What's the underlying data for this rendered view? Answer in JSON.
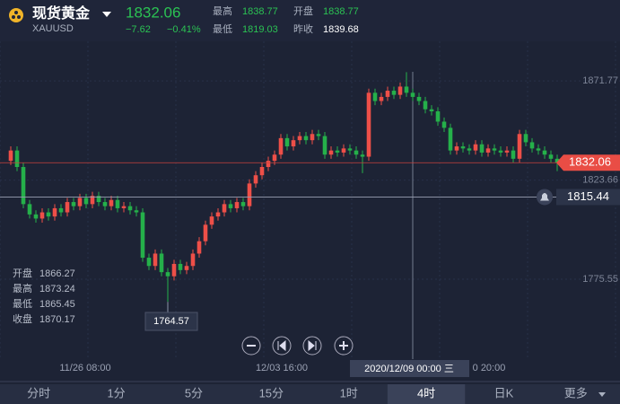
{
  "header": {
    "name": "现货黄金",
    "symbol": "XAUUSD",
    "price": "1832.06",
    "change": "−7.62",
    "change_pct": "−0.41%",
    "stats": [
      {
        "label": "最高",
        "value": "1838.77"
      },
      {
        "label": "开盘",
        "value": "1838.77"
      },
      {
        "label": "最低",
        "value": "1819.03"
      },
      {
        "label": "昨收",
        "value": "1839.68"
      }
    ]
  },
  "info": [
    {
      "label": "开盘",
      "value": "1866.27"
    },
    {
      "label": "最高",
      "value": "1873.24"
    },
    {
      "label": "最低",
      "value": "1865.45"
    },
    {
      "label": "收盘",
      "value": "1870.17"
    }
  ],
  "crosshair_label": "2020/12/09 00:00 三",
  "tabs": [
    "分时",
    "1分",
    "5分",
    "15分",
    "1时",
    "4时",
    "日K",
    "更多"
  ],
  "active_tab": 5,
  "chart_data": {
    "type": "candlestick",
    "up_color": "#ee4f48",
    "down_color": "#25b04a",
    "ylim": [
      1739,
      1891.4
    ],
    "yticks": [
      1775.55,
      1823.66,
      1871.77
    ],
    "xticks": [
      "11/26 08:00",
      "12/03 16:00",
      "0 20:00"
    ],
    "alert_price": 1815.44,
    "open": [
      1833,
      1838,
      1830,
      1812,
      1807,
      1805,
      1808,
      1806,
      1810,
      1808,
      1813,
      1811,
      1815,
      1812,
      1816,
      1813,
      1811,
      1814,
      1810,
      1811,
      1809,
      1808,
      1786,
      1782,
      1788,
      1779,
      1777,
      1783,
      1780,
      1782,
      1788,
      1794,
      1802,
      1806,
      1808,
      1812,
      1810,
      1813,
      1811,
      1822,
      1826,
      1830,
      1833,
      1836,
      1844,
      1840,
      1843,
      1845,
      1843,
      1846,
      1845,
      1836,
      1838,
      1837,
      1839,
      1838,
      1836,
      1835,
      1866,
      1862,
      1864,
      1867,
      1865,
      1869,
      1866,
      1864,
      1862,
      1858,
      1857,
      1852,
      1849,
      1838,
      1840,
      1839,
      1838,
      1841,
      1837,
      1839,
      1838,
      1837,
      1838,
      1834,
      1846,
      1842,
      1839,
      1838,
      1836,
      1834
    ],
    "high": [
      1840,
      1840,
      1832,
      1814,
      1809,
      1810,
      1810,
      1812,
      1812,
      1815,
      1815,
      1817,
      1817,
      1818,
      1818,
      1815,
      1816,
      1816,
      1813,
      1813,
      1811,
      1810,
      1788,
      1790,
      1790,
      1781,
      1785,
      1785,
      1784,
      1790,
      1796,
      1804,
      1808,
      1810,
      1814,
      1814,
      1815,
      1815,
      1824,
      1828,
      1832,
      1835,
      1838,
      1846,
      1846,
      1845,
      1847,
      1847,
      1848,
      1848,
      1847,
      1840,
      1840,
      1841,
      1841,
      1840,
      1838,
      1868,
      1868,
      1866,
      1869,
      1869,
      1871,
      1876,
      1868,
      1866,
      1864,
      1860,
      1859,
      1854,
      1851,
      1842,
      1842,
      1841,
      1843,
      1843,
      1841,
      1841,
      1840,
      1840,
      1840,
      1848,
      1848,
      1844,
      1841,
      1840,
      1838,
      1836
    ],
    "low": [
      1831,
      1828,
      1810,
      1805,
      1803,
      1803,
      1804,
      1804,
      1806,
      1806,
      1809,
      1809,
      1810,
      1810,
      1811,
      1809,
      1809,
      1808,
      1808,
      1807,
      1806,
      1784,
      1780,
      1780,
      1777,
      1764.57,
      1775,
      1778,
      1778,
      1780,
      1786,
      1792,
      1800,
      1804,
      1806,
      1808,
      1808,
      1809,
      1809,
      1820,
      1824,
      1828,
      1831,
      1834,
      1838,
      1838,
      1841,
      1841,
      1841,
      1843,
      1834,
      1834,
      1835,
      1835,
      1836,
      1834,
      1827,
      1833,
      1860,
      1860,
      1862,
      1863,
      1863,
      1864,
      1862,
      1860,
      1856,
      1855,
      1850,
      1847,
      1836,
      1836,
      1837,
      1836,
      1836,
      1835,
      1835,
      1836,
      1835,
      1835,
      1832,
      1832,
      1840,
      1837,
      1836,
      1834,
      1832,
      1828
    ],
    "close": [
      1838,
      1830,
      1812,
      1807,
      1805,
      1808,
      1806,
      1810,
      1808,
      1813,
      1811,
      1815,
      1812,
      1816,
      1813,
      1811,
      1814,
      1810,
      1811,
      1809,
      1808,
      1786,
      1782,
      1788,
      1779,
      1777,
      1783,
      1780,
      1782,
      1788,
      1794,
      1802,
      1806,
      1808,
      1812,
      1810,
      1813,
      1811,
      1822,
      1826,
      1830,
      1833,
      1836,
      1844,
      1840,
      1843,
      1845,
      1843,
      1846,
      1845,
      1836,
      1838,
      1837,
      1839,
      1838,
      1836,
      1835,
      1866,
      1862,
      1864,
      1867,
      1865,
      1869,
      1866,
      1864,
      1862,
      1858,
      1857,
      1852,
      1849,
      1838,
      1840,
      1839,
      1838,
      1841,
      1837,
      1839,
      1838,
      1837,
      1838,
      1834,
      1846,
      1842,
      1839,
      1838,
      1836,
      1834,
      1832.06
    ]
  }
}
